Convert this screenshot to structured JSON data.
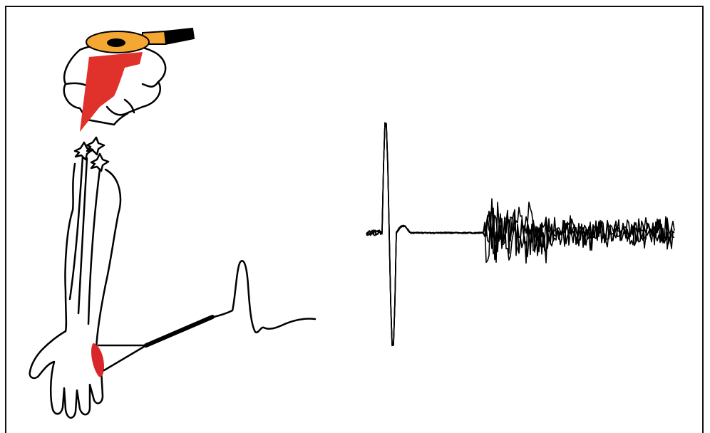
{
  "colors": {
    "coil": "#F4A733",
    "stimulus_arrow": "#E0312A",
    "recording_site": "#D8262A",
    "ink": "#000000"
  },
  "icons": {
    "coil": "tms-coil-icon",
    "arrow": "stimulus-arrow-icon",
    "electrode": "recording-electrode-icon"
  }
}
